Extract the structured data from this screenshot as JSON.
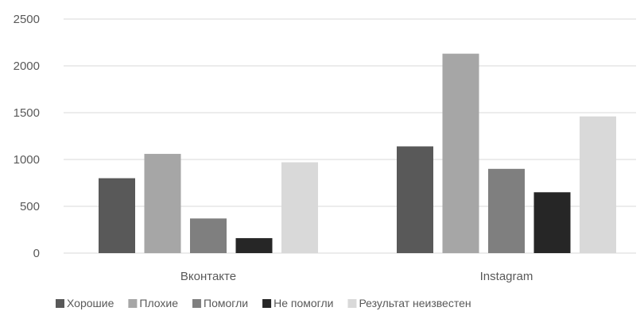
{
  "chart_data": {
    "type": "bar",
    "title": "",
    "xlabel": "",
    "ylabel": "",
    "categories": [
      "Вконтакте",
      "Instagram"
    ],
    "ylim": [
      0,
      2500
    ],
    "yticks": [
      0,
      500,
      1000,
      1500,
      2000,
      2500
    ],
    "grid": true,
    "legend": "bottom",
    "series": [
      {
        "name": "Хорошие",
        "color": "#595959",
        "values": [
          800,
          1140
        ]
      },
      {
        "name": "Плохие",
        "color": "#a6a6a6",
        "values": [
          1060,
          2130
        ]
      },
      {
        "name": "Помогли",
        "color": "#7f7f7f",
        "values": [
          370,
          900
        ]
      },
      {
        "name": "Не помогли",
        "color": "#262626",
        "values": [
          160,
          650
        ]
      },
      {
        "name": "Результат неизвестен",
        "color": "#d9d9d9",
        "values": [
          970,
          1460
        ]
      }
    ]
  }
}
